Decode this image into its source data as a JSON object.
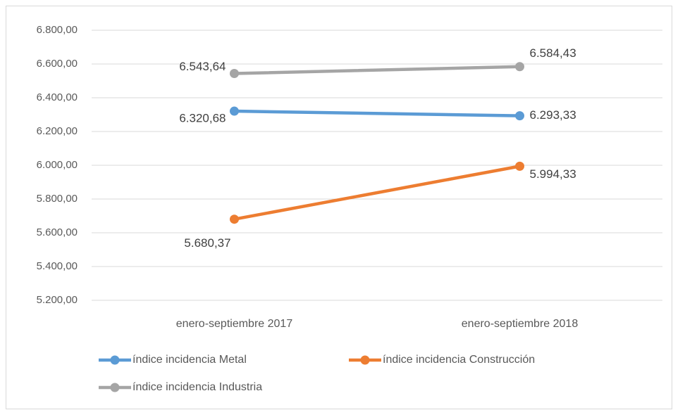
{
  "chart_data": {
    "type": "line",
    "categories": [
      "enero-septiembre 2017",
      "enero-septiembre 2018"
    ],
    "series": [
      {
        "name": "índice incidencia Metal",
        "color": "#5b9bd5",
        "values": [
          6320.68,
          6293.33
        ],
        "value_labels": [
          "6.320,68",
          "6.293,33"
        ]
      },
      {
        "name": "índice incidencia Construcción",
        "color": "#ed7d31",
        "values": [
          5680.37,
          5994.33
        ],
        "value_labels": [
          "5.680,37",
          "5.994,33"
        ]
      },
      {
        "name": "índice incidencia Industria",
        "color": "#a5a5a5",
        "values": [
          6543.64,
          6584.43
        ],
        "value_labels": [
          "6.543,64",
          "6.584,43"
        ]
      }
    ],
    "ylim": [
      5200,
      6800
    ],
    "yticks": [
      {
        "value": 5200,
        "label": "5.200,00"
      },
      {
        "value": 5400,
        "label": "5.400,00"
      },
      {
        "value": 5600,
        "label": "5.600,00"
      },
      {
        "value": 5800,
        "label": "5.800,00"
      },
      {
        "value": 6000,
        "label": "6.000,00"
      },
      {
        "value": 6200,
        "label": "6.200,00"
      },
      {
        "value": 6400,
        "label": "6.400,00"
      },
      {
        "value": 6600,
        "label": "6.600,00"
      },
      {
        "value": 6800,
        "label": "6.800,00"
      }
    ],
    "grid": true,
    "legend": "bottom"
  }
}
